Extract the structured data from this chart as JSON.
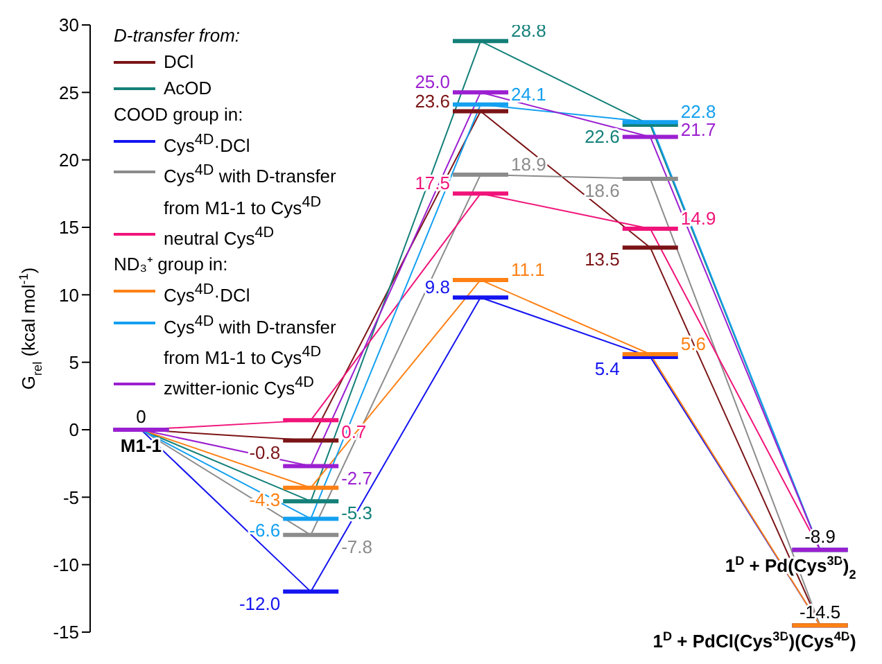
{
  "chart_data": {
    "type": "line",
    "ylabel": "G$_{rel}$ (kcal mol$^{-1}$)",
    "categories": [
      null,
      null,
      null,
      null,
      null
    ],
    "ylim": [
      -15,
      30
    ],
    "yticks": [
      -15,
      -10,
      -5,
      0,
      5,
      10,
      15,
      20,
      25,
      30
    ],
    "legend": "top left",
    "grid": false,
    "legend_title": "D-transfer from:",
    "series": [
      {
        "name": "DCl",
        "color": "#7b1416",
        "values": [
          0,
          -0.8,
          23.6,
          13.5,
          -14.5
        ],
        "value_labels": [
          "0",
          "-0.8",
          "23.6",
          "13.5",
          "-14.5"
        ]
      },
      {
        "name": "AcOD",
        "color": "#138079",
        "values": [
          0,
          -5.3,
          28.8,
          22.6,
          -8.9
        ],
        "value_labels": [
          null,
          "-5.3",
          "28.8",
          "22.6",
          "-8.9"
        ]
      },
      {
        "name": "Cys$^{4D}$·DCl",
        "color": "#1414f0",
        "values": [
          0,
          -12.0,
          9.8,
          5.4,
          -14.5
        ],
        "value_labels": [
          null,
          "-12.0",
          "9.8",
          "5.4",
          null
        ]
      },
      {
        "name": "Cys$^{4D}$ with D-transfer from M1-1 to Cys$^{4D}$",
        "color": "#8c8c8c",
        "values": [
          0,
          -7.8,
          18.9,
          18.6,
          -14.5
        ],
        "value_labels": [
          null,
          "-7.8",
          "18.9",
          "18.6",
          null
        ]
      },
      {
        "name": "neutral Cys$^{4D}$",
        "color": "#f0147a",
        "values": [
          0,
          0.7,
          17.5,
          14.9,
          -8.9
        ],
        "value_labels": [
          null,
          "0.7",
          "17.5",
          "14.9",
          null
        ]
      },
      {
        "name": "Cys$^{4D}$·DCl",
        "color": "#ff8014",
        "values": [
          0,
          -4.3,
          11.1,
          5.6,
          -14.5
        ],
        "value_labels": [
          null,
          "-4.3",
          "11.1",
          "5.6",
          null
        ]
      },
      {
        "name": "Cys$^{4D}$ with D-transfer from M1-1 to Cys$^{4D}$",
        "color": "#14a0f0",
        "values": [
          0,
          -6.6,
          24.1,
          22.8,
          -8.9
        ],
        "value_labels": [
          null,
          "-6.6",
          "24.1",
          "22.8",
          null
        ]
      },
      {
        "name": "zwitter-ionic Cys$^{4D}$",
        "color": "#9b1fd0",
        "values": [
          0,
          -2.7,
          25.0,
          21.7,
          -8.9
        ],
        "value_labels": [
          null,
          "-2.7",
          "25.0",
          "21.7",
          null
        ]
      }
    ],
    "annotations": [
      "M1-1",
      "1$^{D}$ + Pd(Cys$^{3D}$)$_{2}$",
      "1$^{D}$ + PdCl(Cys$^{3D}$)(Cys$^{4D}$)",
      "COOD group in:",
      "ND₃⁺ group in:"
    ]
  }
}
